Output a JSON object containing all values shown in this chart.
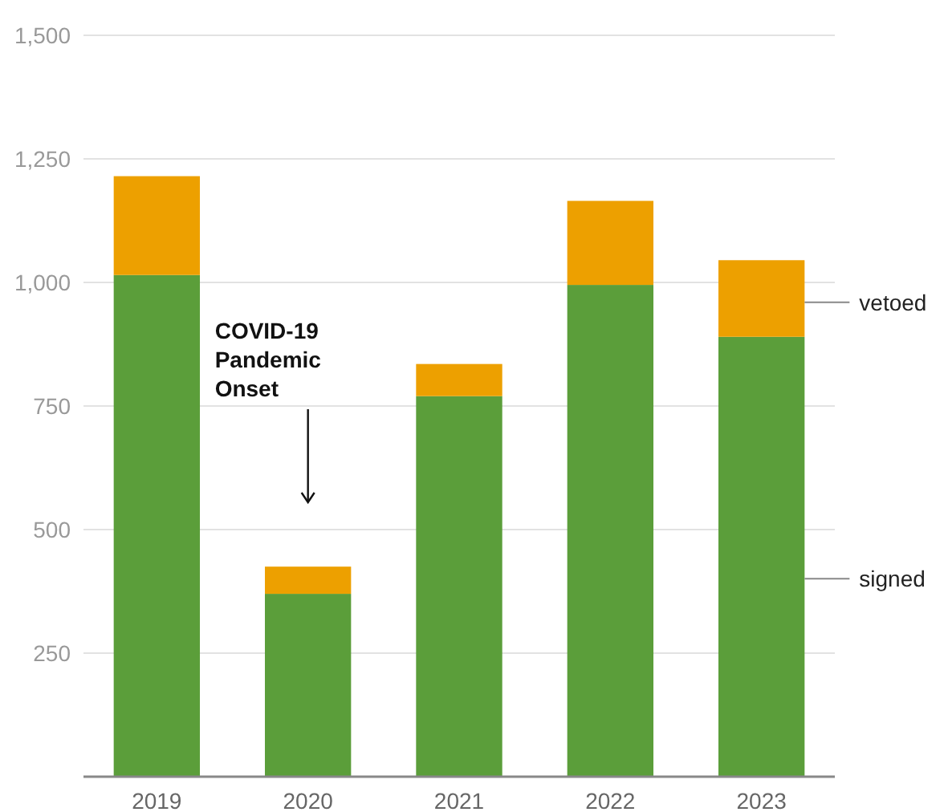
{
  "chart_data": {
    "type": "bar",
    "stacked": true,
    "categories": [
      "2019",
      "2020",
      "2021",
      "2022",
      "2023"
    ],
    "series": [
      {
        "name": "signed",
        "color": "#5b9e3a",
        "values": [
          1015,
          370,
          770,
          995,
          890
        ]
      },
      {
        "name": "vetoed",
        "color": "#eda000",
        "values": [
          200,
          55,
          65,
          170,
          155
        ]
      }
    ],
    "ylim": [
      0,
      1500
    ],
    "yticks": [
      {
        "value": 250,
        "label": "250"
      },
      {
        "value": 500,
        "label": "500"
      },
      {
        "value": 750,
        "label": "750"
      },
      {
        "value": 1000,
        "label": "1,000"
      },
      {
        "value": 1250,
        "label": "1,250"
      },
      {
        "value": 1500,
        "label": "1,500"
      }
    ],
    "grid": "y",
    "legend": "right",
    "annotations": [
      "COVID-19\nPandemic\nOnset"
    ]
  }
}
